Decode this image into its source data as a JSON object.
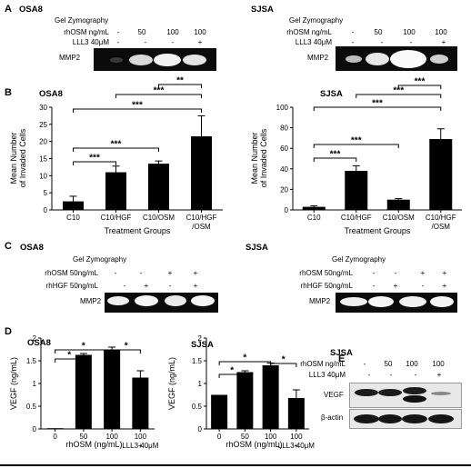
{
  "panelA": {
    "letter": "A",
    "left": {
      "cell": "OSA8",
      "method": "Gel Zymography",
      "row1Label": "rhOSM ng/mL",
      "row1Vals": [
        "-",
        "50",
        "100",
        "100"
      ],
      "row2Label": "LLL3 40μM",
      "row2Vals": [
        "-",
        "-",
        "-",
        "+"
      ],
      "band": "MMP2"
    },
    "right": {
      "cell": "SJSA",
      "method": "Gel Zymography",
      "row1Label": "rhOSM ng/mL",
      "row1Vals": [
        "-",
        "50",
        "100",
        "100"
      ],
      "row2Label": "LLL3 40μM",
      "row2Vals": [
        "-",
        "-",
        "-",
        "+"
      ],
      "band": "MMP2"
    }
  },
  "panelB": {
    "letter": "B"
  },
  "panelC": {
    "letter": "C",
    "left": {
      "cell": "OSA8",
      "method": "Gel Zymography",
      "row1Label": "rhOSM 50ng/mL",
      "row1Vals": [
        "-",
        "-",
        "+",
        "+"
      ],
      "row2Label": "rhHGF 50ng/mL",
      "row2Vals": [
        "-",
        "+",
        "-",
        "+"
      ],
      "band": "MMP2"
    },
    "right": {
      "cell": "SJSA",
      "method": "Gel Zymography",
      "row1Label": "rhOSM 50ng/mL",
      "row1Vals": [
        "-",
        "-",
        "+",
        "+"
      ],
      "row2Label": "rhHGF 50ng/mL",
      "row2Vals": [
        "-",
        "+",
        "-",
        "+"
      ],
      "band": "MMP2"
    }
  },
  "panelD": {
    "letter": "D"
  },
  "panelE": {
    "letter": "E",
    "cell": "SJSA",
    "row1Label": "rhOSM ng/mL",
    "row1Vals": [
      "-",
      "50",
      "100",
      "100"
    ],
    "row2Label": "LLL3 40μM",
    "row2Vals": [
      "-",
      "-",
      "-",
      "+"
    ],
    "band1": "VEGF",
    "band2": "β-actin"
  },
  "chart_data": [
    {
      "id": "B-left",
      "type": "bar",
      "title": "OSA8",
      "categories": [
        "C10",
        "C10/HGF",
        "C10/OSM",
        "C10/HGF /OSM"
      ],
      "values": [
        2.5,
        11,
        13.5,
        21.5
      ],
      "errors": [
        1.5,
        1.8,
        0.8,
        6
      ],
      "xlabel": "Treatment Groups",
      "ylabel": "Mean Number of Invaded Cells",
      "ylim": [
        0,
        30
      ],
      "yticks": [
        "0",
        "5",
        "10",
        "15",
        "20",
        "25",
        "30"
      ],
      "significance": [
        {
          "from": 0,
          "to": 1,
          "label": "***"
        },
        {
          "from": 0,
          "to": 2,
          "label": "***"
        },
        {
          "from": 0,
          "to": 3,
          "label": "***"
        },
        {
          "from": 1,
          "to": 3,
          "label": "***"
        },
        {
          "from": 2,
          "to": 3,
          "label": "**"
        }
      ]
    },
    {
      "id": "B-right",
      "type": "bar",
      "title": "SJSA",
      "categories": [
        "C10",
        "C10/HGF",
        "C10/OSM",
        "C10/HGF /OSM"
      ],
      "values": [
        3,
        38,
        10,
        69
      ],
      "errors": [
        1,
        5,
        1,
        10
      ],
      "xlabel": "Treatment Groups",
      "ylabel": "Mean Number of Invaded Cells",
      "ylim": [
        0,
        100
      ],
      "yticks": [
        "0",
        "20",
        "40",
        "60",
        "80",
        "100"
      ],
      "significance": [
        {
          "from": 0,
          "to": 1,
          "label": "***"
        },
        {
          "from": 0,
          "to": 2,
          "label": "***"
        },
        {
          "from": 0,
          "to": 3,
          "label": "***"
        },
        {
          "from": 1,
          "to": 3,
          "label": "***"
        },
        {
          "from": 2,
          "to": 3,
          "label": "***"
        }
      ]
    },
    {
      "id": "D-left",
      "type": "bar",
      "title": "OSA8",
      "categories": [
        "0",
        "50",
        "100",
        "100 +"
      ],
      "extra_label": "LLL3 40μM",
      "values": [
        0.01,
        1.63,
        1.75,
        1.13
      ],
      "errors": [
        0,
        0.03,
        0.05,
        0.15
      ],
      "xlabel": "rhOSM (ng/mL)",
      "ylabel": "VEGF (ng/mL)",
      "ylim": [
        0,
        2
      ],
      "yticks": [
        "0",
        "0.5",
        "1",
        "1.5",
        "2"
      ],
      "significance": [
        {
          "from": 0,
          "to": 1,
          "label": "*"
        },
        {
          "from": 0,
          "to": 2,
          "label": "*"
        },
        {
          "from": 2,
          "to": 3,
          "label": "*"
        }
      ]
    },
    {
      "id": "D-right",
      "type": "bar",
      "title": "SJSA",
      "categories": [
        "0",
        "50",
        "100",
        "100 +"
      ],
      "extra_label": "LLL3 40μM",
      "values": [
        0.75,
        1.25,
        1.4,
        0.68
      ],
      "errors": [
        0,
        0.03,
        0.05,
        0.18
      ],
      "xlabel": "rhOSM (ng/mL)",
      "ylabel": "VEGF (ng/mL)",
      "ylim": [
        0,
        2
      ],
      "yticks": [
        "0",
        "0.5",
        "1",
        "1.5",
        "2"
      ],
      "significance": [
        {
          "from": 0,
          "to": 1,
          "label": "*"
        },
        {
          "from": 0,
          "to": 2,
          "label": "*"
        },
        {
          "from": 2,
          "to": 3,
          "label": "*"
        }
      ]
    }
  ]
}
